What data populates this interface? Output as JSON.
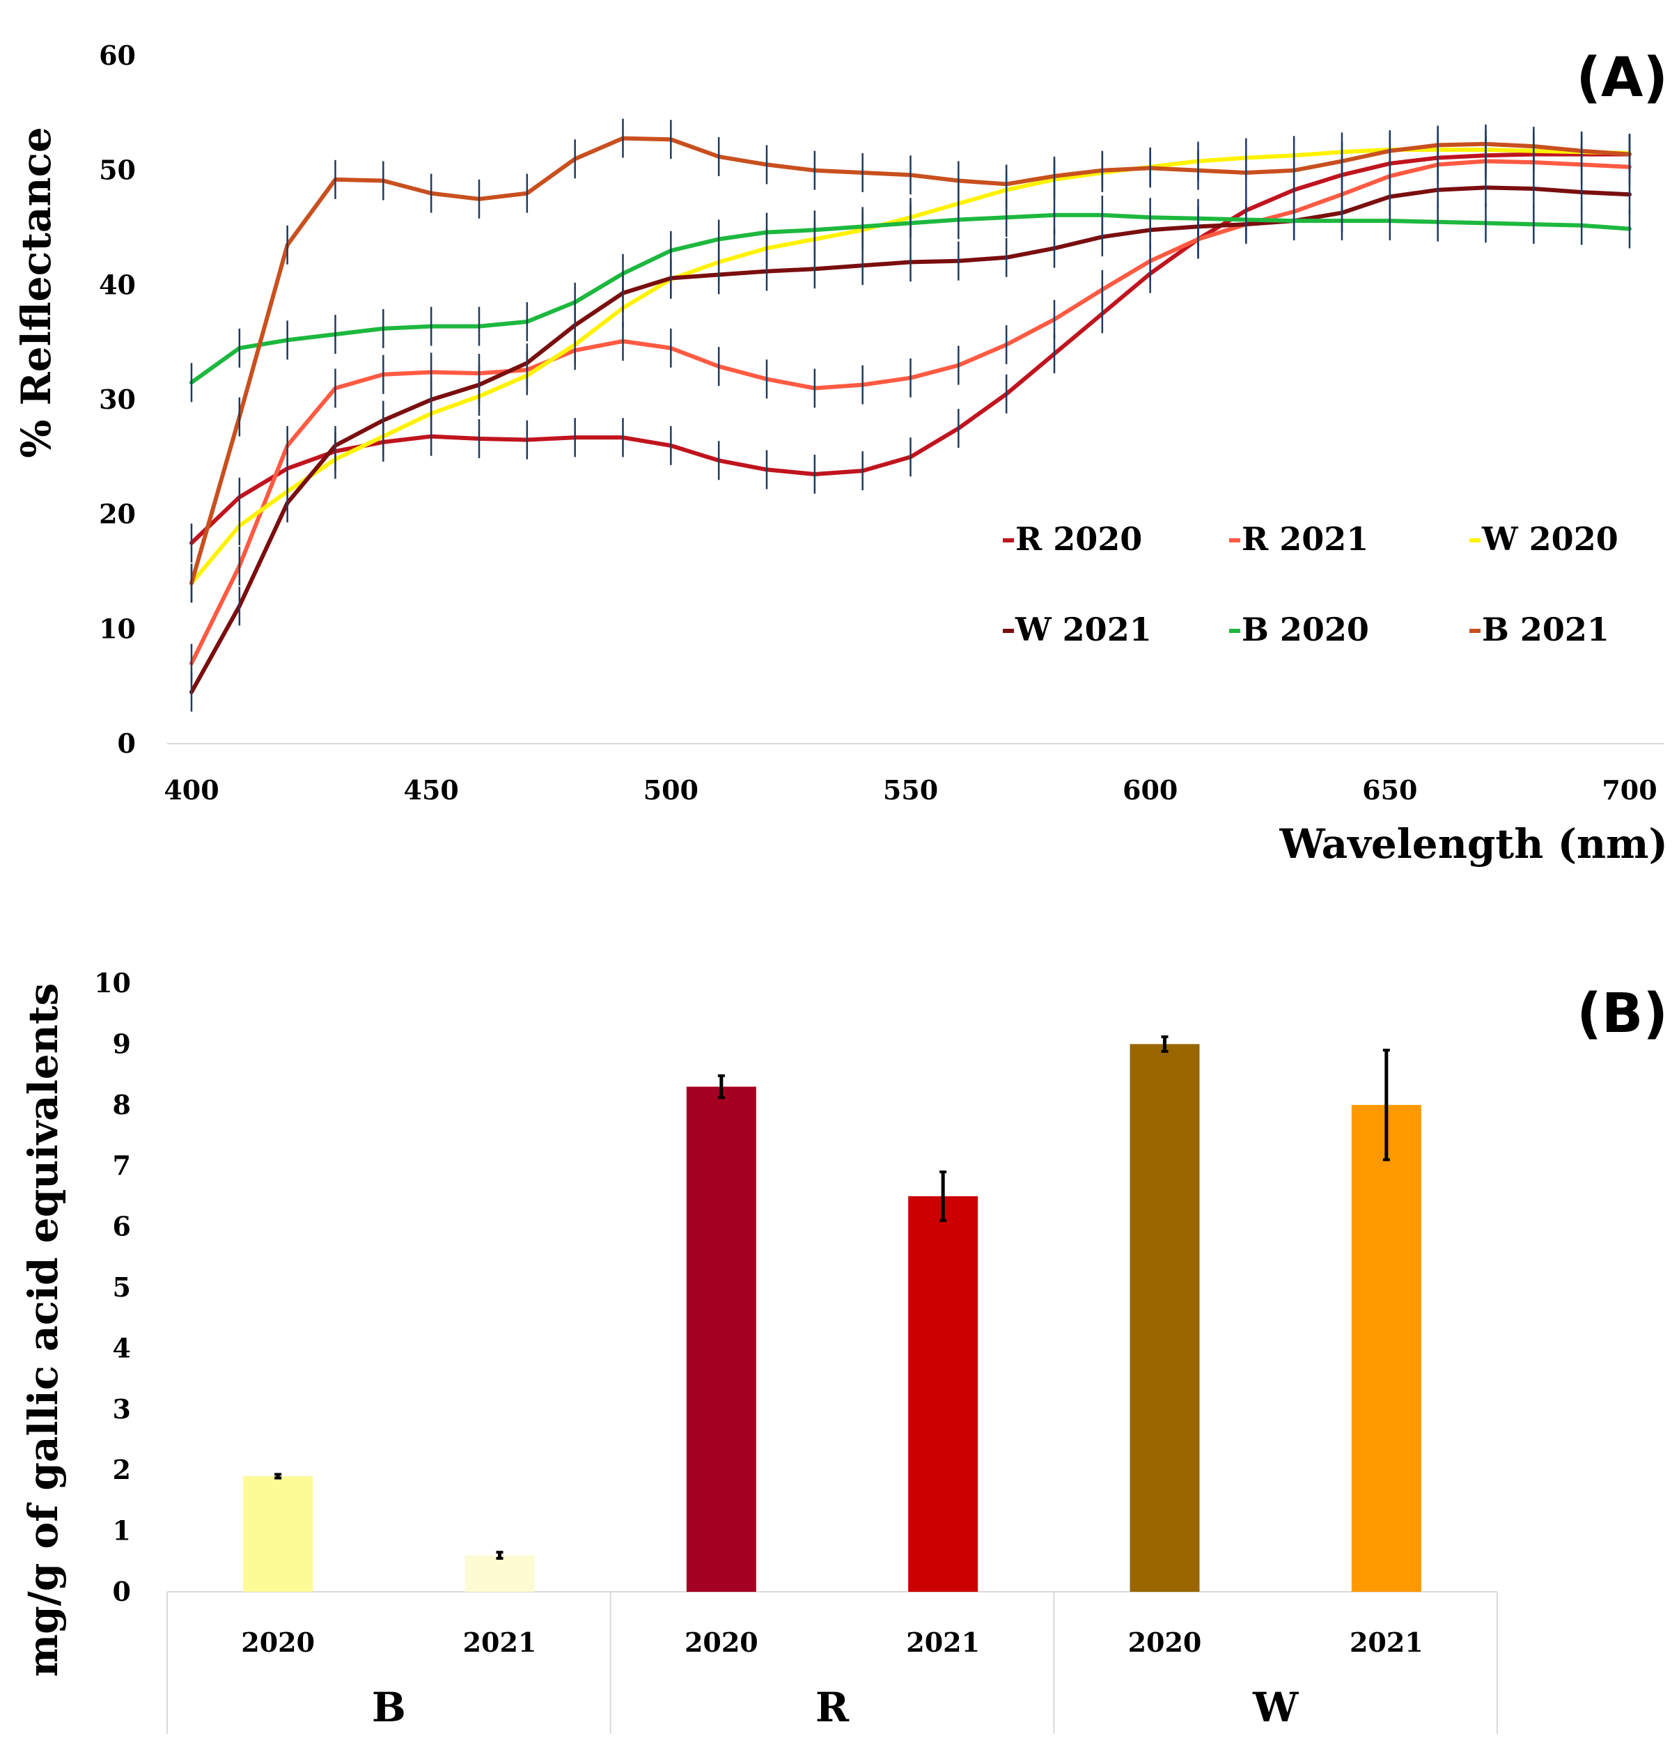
{
  "chart_data": [
    {
      "panel": "(A)",
      "type": "line",
      "xlabel": "Wavelength (nm)",
      "ylabel": "% Relflectance",
      "xlim": [
        400,
        700
      ],
      "ylim": [
        0,
        60
      ],
      "xticks": [
        400,
        450,
        500,
        550,
        600,
        650,
        700
      ],
      "yticks": [
        0,
        10,
        20,
        30,
        40,
        50,
        60
      ],
      "grid": false,
      "legend_position": "lower-right",
      "error_bar_color": "#1f3a5f",
      "x": [
        400,
        410,
        420,
        430,
        440,
        450,
        460,
        470,
        480,
        490,
        500,
        510,
        520,
        530,
        540,
        550,
        560,
        570,
        580,
        590,
        600,
        610,
        620,
        630,
        640,
        650,
        660,
        670,
        680,
        690,
        700
      ],
      "series": [
        {
          "name": "R 2020",
          "color": "#c0141e",
          "values": [
            17.5,
            21.5,
            24,
            25.5,
            26.3,
            26.8,
            26.6,
            26.5,
            26.7,
            26.7,
            26,
            24.7,
            23.9,
            23.5,
            23.8,
            25,
            27.5,
            30.5,
            34,
            37.5,
            41,
            44,
            46.5,
            48.3,
            49.6,
            50.6,
            51.1,
            51.3,
            51.4,
            51.4,
            51.4
          ]
        },
        {
          "name": "R 2021",
          "color": "#ff5a42",
          "values": [
            7,
            15.5,
            26,
            31,
            32.2,
            32.4,
            32.3,
            32.6,
            34.3,
            35.1,
            34.5,
            32.9,
            31.8,
            31,
            31.3,
            31.9,
            33,
            34.8,
            37,
            39.6,
            42.1,
            44,
            45.3,
            46.4,
            47.9,
            49.5,
            50.5,
            50.8,
            50.7,
            50.5,
            50.3
          ]
        },
        {
          "name": "W 2020",
          "color": "#fff200",
          "values": [
            14,
            19,
            22,
            24.8,
            26.8,
            28.8,
            30.3,
            32.1,
            34.8,
            38,
            40.5,
            42,
            43.2,
            44,
            44.8,
            45.9,
            47.1,
            48.3,
            49.2,
            49.8,
            50.3,
            50.8,
            51.1,
            51.3,
            51.6,
            51.8,
            51.8,
            51.8,
            51.7,
            51.6,
            51.5
          ]
        },
        {
          "name": "W 2021",
          "color": "#7a0e0e",
          "values": [
            4.5,
            12,
            21,
            26,
            28.2,
            30,
            31.3,
            33.2,
            36.5,
            39.3,
            40.6,
            40.9,
            41.2,
            41.4,
            41.7,
            42,
            42.1,
            42.4,
            43.2,
            44.2,
            44.8,
            45.1,
            45.3,
            45.6,
            46.3,
            47.7,
            48.3,
            48.5,
            48.4,
            48.1,
            47.9
          ]
        },
        {
          "name": "B 2020",
          "color": "#1db83e",
          "values": [
            31.5,
            34.5,
            35.2,
            35.7,
            36.2,
            36.4,
            36.4,
            36.8,
            38.5,
            41,
            43,
            44,
            44.6,
            44.8,
            45.1,
            45.4,
            45.7,
            45.9,
            46.1,
            46.1,
            45.9,
            45.8,
            45.7,
            45.6,
            45.6,
            45.6,
            45.5,
            45.4,
            45.3,
            45.2,
            44.9
          ]
        },
        {
          "name": "B 2021",
          "color": "#c8501e",
          "values": [
            14,
            28.5,
            43.5,
            49.2,
            49.1,
            48,
            47.5,
            48,
            51,
            52.8,
            52.7,
            51.2,
            50.5,
            50,
            49.8,
            49.6,
            49.1,
            48.8,
            49.5,
            50,
            50.2,
            50,
            49.8,
            50,
            50.8,
            51.7,
            52.2,
            52.3,
            52.1,
            51.7,
            51.4
          ]
        }
      ],
      "panel_label": "(A)"
    },
    {
      "panel": "(B)",
      "type": "bar",
      "ylabel": "mg/g of gallic acid equivalents",
      "ylim": [
        0,
        10
      ],
      "yticks": [
        0,
        1,
        2,
        3,
        4,
        5,
        6,
        7,
        8,
        9,
        10
      ],
      "grid": false,
      "groups": [
        "B",
        "R",
        "W"
      ],
      "categories": [
        "2020",
        "2021",
        "2020",
        "2021",
        "2020",
        "2021"
      ],
      "bars": [
        {
          "group": "B",
          "year": "2020",
          "value": 1.9,
          "error": 0.03,
          "color": "#fdfb96"
        },
        {
          "group": "B",
          "year": "2021",
          "value": 0.6,
          "error": 0.05,
          "color": "#fdfbd2"
        },
        {
          "group": "R",
          "year": "2020",
          "value": 8.3,
          "error": 0.18,
          "color": "#a50021"
        },
        {
          "group": "R",
          "year": "2021",
          "value": 6.5,
          "error": 0.4,
          "color": "#cc0000"
        },
        {
          "group": "W",
          "year": "2020",
          "value": 9.0,
          "error": 0.12,
          "color": "#996600"
        },
        {
          "group": "W",
          "year": "2021",
          "value": 8.0,
          "error": 0.9,
          "color": "#ff9900"
        }
      ],
      "panel_label": "(B)"
    }
  ]
}
